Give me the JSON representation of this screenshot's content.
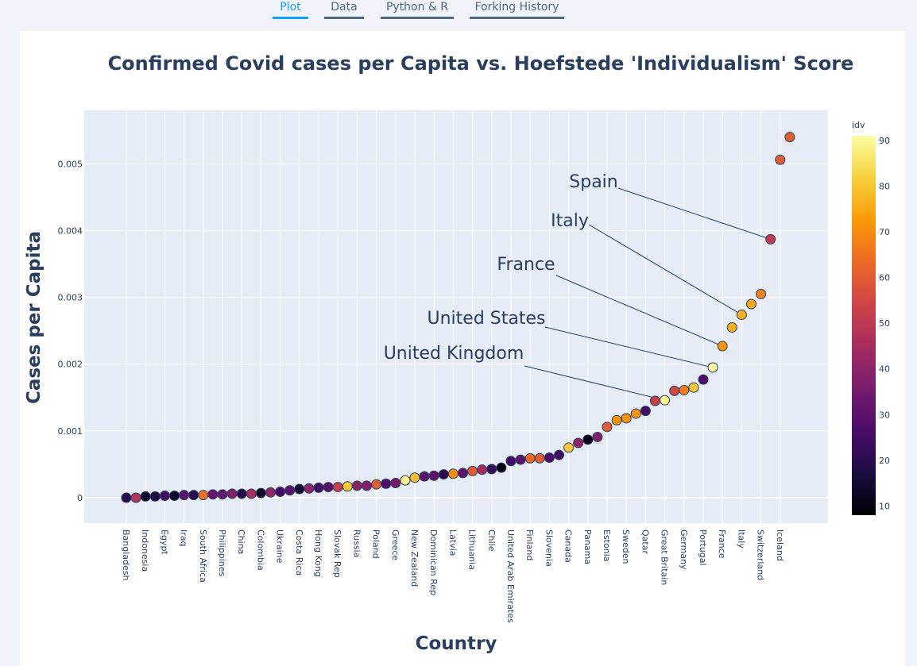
{
  "tabs": [
    {
      "label": "Plot",
      "active": true
    },
    {
      "label": "Data",
      "active": false
    },
    {
      "label": "Python & R",
      "active": false
    },
    {
      "label": "Forking History",
      "active": false
    }
  ],
  "chart_data": {
    "type": "scatter",
    "title": "Confirmed Covid cases per Capita vs. Hoefstede 'Individualism' Score",
    "xlabel": "Country",
    "ylabel": "Cases per Capita",
    "ylim": [
      -0.00038,
      0.0058
    ],
    "yticks": [
      0,
      0.001,
      0.002,
      0.003,
      0.004,
      0.005
    ],
    "ytick_labels": [
      "0",
      "0.001",
      "0.002",
      "0.003",
      "0.004",
      "0.005"
    ],
    "colorbar": {
      "title": "idv",
      "min": 8,
      "max": 91,
      "ticks": [
        10,
        20,
        30,
        40,
        50,
        60,
        70,
        80,
        90
      ]
    },
    "colors": {
      "plot_bg": "#e5ecf6",
      "grid": "#ffffff",
      "text": "#2a3f5f",
      "annotation_line": "#2a3f5f"
    },
    "points": [
      {
        "country": "Bangladesh",
        "y": 0.0,
        "idv": 20
      },
      {
        "country": "",
        "y": 0.0,
        "idv": 48
      },
      {
        "country": "Indonesia",
        "y": 2e-05,
        "idv": 14
      },
      {
        "country": "",
        "y": 2e-05,
        "idv": 18
      },
      {
        "country": "Egypt",
        "y": 3e-05,
        "idv": 25
      },
      {
        "country": "",
        "y": 3e-05,
        "idv": 14
      },
      {
        "country": "Iraq",
        "y": 4e-05,
        "idv": 30
      },
      {
        "country": "",
        "y": 4e-05,
        "idv": 20
      },
      {
        "country": "South Africa",
        "y": 4e-05,
        "idv": 65
      },
      {
        "country": "",
        "y": 5e-05,
        "idv": 32
      },
      {
        "country": "Philippines",
        "y": 5e-05,
        "idv": 32
      },
      {
        "country": "",
        "y": 6e-05,
        "idv": 38
      },
      {
        "country": "China",
        "y": 6e-05,
        "idv": 20
      },
      {
        "country": "",
        "y": 6e-05,
        "idv": 46
      },
      {
        "country": "Colombia",
        "y": 7e-05,
        "idv": 13
      },
      {
        "country": "",
        "y": 8e-05,
        "idv": 41
      },
      {
        "country": "Ukraine",
        "y": 9e-05,
        "idv": 25
      },
      {
        "country": "",
        "y": 0.00011,
        "idv": 30
      },
      {
        "country": "Costa Rica",
        "y": 0.00013,
        "idv": 15
      },
      {
        "country": "",
        "y": 0.00014,
        "idv": 40
      },
      {
        "country": "Hong Kong",
        "y": 0.00015,
        "idv": 25
      },
      {
        "country": "",
        "y": 0.00016,
        "idv": 30
      },
      {
        "country": "Slovak Rep",
        "y": 0.00016,
        "idv": 52
      },
      {
        "country": "",
        "y": 0.00017,
        "idv": 80
      },
      {
        "country": "Russia",
        "y": 0.00018,
        "idv": 39
      },
      {
        "country": "",
        "y": 0.00018,
        "idv": 38
      },
      {
        "country": "Poland",
        "y": 0.0002,
        "idv": 60
      },
      {
        "country": "",
        "y": 0.00021,
        "idv": 27
      },
      {
        "country": "Greece",
        "y": 0.00022,
        "idv": 35
      },
      {
        "country": "",
        "y": 0.00026,
        "idv": 89
      },
      {
        "country": "New Zealand",
        "y": 0.0003,
        "idv": 79
      },
      {
        "country": "",
        "y": 0.00032,
        "idv": 30
      },
      {
        "country": "Dominican Rep",
        "y": 0.00033,
        "idv": 30
      },
      {
        "country": "",
        "y": 0.00035,
        "idv": 20
      },
      {
        "country": "Latvia",
        "y": 0.00036,
        "idv": 70
      },
      {
        "country": "",
        "y": 0.00037,
        "idv": 30
      },
      {
        "country": "Lithuania",
        "y": 0.0004,
        "idv": 60
      },
      {
        "country": "",
        "y": 0.00042,
        "idv": 45
      },
      {
        "country": "Chile",
        "y": 0.00043,
        "idv": 23
      },
      {
        "country": "",
        "y": 0.00045,
        "idv": 10
      },
      {
        "country": "United Arab Emirates",
        "y": 0.00055,
        "idv": 25
      },
      {
        "country": "",
        "y": 0.00057,
        "idv": 30
      },
      {
        "country": "Finland",
        "y": 0.00059,
        "idv": 63
      },
      {
        "country": "",
        "y": 0.00059,
        "idv": 60
      },
      {
        "country": "Slovenia",
        "y": 0.0006,
        "idv": 27
      },
      {
        "country": "",
        "y": 0.00064,
        "idv": 25
      },
      {
        "country": "Canada",
        "y": 0.00075,
        "idv": 80
      },
      {
        "country": "",
        "y": 0.00082,
        "idv": 40
      },
      {
        "country": "Panama",
        "y": 0.00087,
        "idv": 11
      },
      {
        "country": "",
        "y": 0.00091,
        "idv": 38
      },
      {
        "country": "Estonia",
        "y": 0.00106,
        "idv": 60
      },
      {
        "country": "",
        "y": 0.00116,
        "idv": 71
      },
      {
        "country": "Sweden",
        "y": 0.00119,
        "idv": 71
      },
      {
        "country": "",
        "y": 0.00126,
        "idv": 71
      },
      {
        "country": "Qatar",
        "y": 0.0013,
        "idv": 25
      },
      {
        "country": "",
        "y": 0.00145,
        "idv": 52
      },
      {
        "country": "Great Britain",
        "y": 0.00146,
        "idv": 89
      },
      {
        "country": "",
        "y": 0.0016,
        "idv": 55
      },
      {
        "country": "Germany",
        "y": 0.00161,
        "idv": 67
      },
      {
        "country": "",
        "y": 0.00165,
        "idv": 80
      },
      {
        "country": "Portugal",
        "y": 0.00177,
        "idv": 27
      },
      {
        "country": "",
        "y": 0.00195,
        "idv": 91
      },
      {
        "country": "France",
        "y": 0.00227,
        "idv": 71
      },
      {
        "country": "",
        "y": 0.00255,
        "idv": 76
      },
      {
        "country": "Italy",
        "y": 0.00274,
        "idv": 76
      },
      {
        "country": "",
        "y": 0.0029,
        "idv": 75
      },
      {
        "country": "Switzerland",
        "y": 0.00305,
        "idv": 68
      },
      {
        "country": "",
        "y": 0.00387,
        "idv": 51
      },
      {
        "country": "Iceland",
        "y": 0.00506,
        "idv": 60
      },
      {
        "country": "",
        "y": 0.0054,
        "idv": 60
      }
    ],
    "annotations": [
      {
        "text": "Spain",
        "point_index": 67
      },
      {
        "text": "Italy",
        "point_index": 64
      },
      {
        "text": "France",
        "point_index": 62
      },
      {
        "text": "United States",
        "point_index": 61
      },
      {
        "text": "United Kingdom",
        "point_index": 56
      }
    ]
  }
}
